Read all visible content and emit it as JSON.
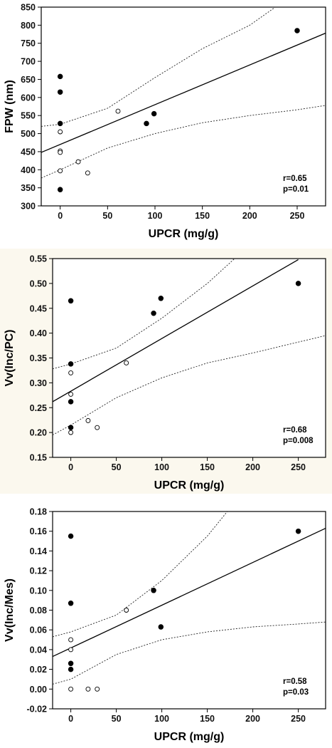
{
  "charts": [
    {
      "type": "scatter",
      "ylabel": "FPW (nm)",
      "xlabel": "UPCR (mg/g)",
      "xlim": [
        -20,
        280
      ],
      "ylim": [
        300,
        850
      ],
      "xticks": [
        0,
        50,
        100,
        150,
        200,
        250
      ],
      "yticks": [
        300,
        350,
        400,
        450,
        500,
        550,
        600,
        650,
        700,
        750,
        800,
        850
      ],
      "tick_decimals": 0,
      "background": "#ffffff",
      "annotation_r": "r=0.65",
      "annotation_p": "p=0.01",
      "series": [
        {
          "marker": "filled",
          "points": [
            [
              0,
              658
            ],
            [
              0,
              615
            ],
            [
              0,
              528
            ],
            [
              0,
              345
            ],
            [
              91,
              528
            ],
            [
              99,
              555
            ],
            [
              250,
              785
            ]
          ]
        },
        {
          "marker": "open",
          "points": [
            [
              0,
              505
            ],
            [
              0,
              452
            ],
            [
              0,
              448
            ],
            [
              0,
              397
            ],
            [
              19,
              422
            ],
            [
              29,
              391
            ],
            [
              61,
              562
            ]
          ]
        }
      ],
      "regression": {
        "x": [
          -20,
          280
        ],
        "y": [
          448,
          778
        ]
      },
      "band_upper": {
        "x": [
          -20,
          0,
          50,
          100,
          150,
          200,
          227
        ],
        "y": [
          520,
          526,
          570,
          655,
          735,
          800,
          850
        ]
      },
      "band_lower": {
        "x": [
          -20,
          0,
          50,
          100,
          150,
          200,
          250,
          280
        ],
        "y": [
          377,
          400,
          460,
          500,
          530,
          550,
          566,
          578
        ]
      }
    },
    {
      "type": "scatter",
      "ylabel": "Vv(Inc/PC)",
      "xlabel": "UPCR (mg/g)",
      "xlim": [
        -20,
        280
      ],
      "ylim": [
        0.15,
        0.55
      ],
      "xticks": [
        0,
        50,
        100,
        150,
        200,
        250
      ],
      "yticks": [
        0.15,
        0.2,
        0.25,
        0.3,
        0.35,
        0.4,
        0.45,
        0.5,
        0.55
      ],
      "tick_decimals": 2,
      "background": "#fbf8ee",
      "annotation_r": "r=0.68",
      "annotation_p": "p=0.008",
      "series": [
        {
          "marker": "filled",
          "points": [
            [
              0,
              0.465
            ],
            [
              0,
              0.338
            ],
            [
              0,
              0.262
            ],
            [
              0,
              0.21
            ],
            [
              91,
              0.44
            ],
            [
              99,
              0.47
            ],
            [
              250,
              0.5
            ]
          ]
        },
        {
          "marker": "open",
          "points": [
            [
              0,
              0.32
            ],
            [
              0,
              0.277
            ],
            [
              0,
              0.2
            ],
            [
              19,
              0.224
            ],
            [
              29,
              0.21
            ],
            [
              61,
              0.34
            ]
          ]
        }
      ],
      "regression": {
        "x": [
          -20,
          250
        ],
        "y": [
          0.262,
          0.548
        ]
      },
      "band_upper": {
        "x": [
          -20,
          0,
          50,
          100,
          150,
          180
        ],
        "y": [
          0.328,
          0.338,
          0.37,
          0.43,
          0.5,
          0.55
        ]
      },
      "band_lower": {
        "x": [
          -20,
          0,
          50,
          100,
          150,
          200,
          250,
          280
        ],
        "y": [
          0.195,
          0.215,
          0.27,
          0.31,
          0.34,
          0.36,
          0.382,
          0.395
        ]
      }
    },
    {
      "type": "scatter",
      "ylabel": "Vv(Inc/Mes)",
      "xlabel": "UPCR (mg/g)",
      "xlim": [
        -20,
        280
      ],
      "ylim": [
        -0.02,
        0.18
      ],
      "xticks": [
        0,
        50,
        100,
        150,
        200,
        250
      ],
      "yticks": [
        -0.02,
        0.0,
        0.02,
        0.04,
        0.06,
        0.08,
        0.1,
        0.12,
        0.14,
        0.16,
        0.18
      ],
      "tick_decimals": 2,
      "background": "#ffffff",
      "annotation_r": "r=0.58",
      "annotation_p": "p=0.03",
      "series": [
        {
          "marker": "filled",
          "points": [
            [
              0,
              0.155
            ],
            [
              0,
              0.087
            ],
            [
              0,
              0.026
            ],
            [
              0,
              0.02
            ],
            [
              91,
              0.1
            ],
            [
              99,
              0.063
            ],
            [
              250,
              0.16
            ]
          ]
        },
        {
          "marker": "open",
          "points": [
            [
              0,
              0.05
            ],
            [
              0,
              0.04
            ],
            [
              0,
              0.0
            ],
            [
              19,
              0.0
            ],
            [
              29,
              0.0
            ],
            [
              61,
              0.08
            ]
          ]
        }
      ],
      "regression": {
        "x": [
          -20,
          280
        ],
        "y": [
          0.033,
          0.163
        ]
      },
      "band_upper": {
        "x": [
          -20,
          0,
          50,
          100,
          150,
          172
        ],
        "y": [
          0.053,
          0.058,
          0.075,
          0.11,
          0.155,
          0.18
        ]
      },
      "band_lower": {
        "x": [
          -20,
          0,
          50,
          100,
          150,
          200,
          250,
          280
        ],
        "y": [
          0.005,
          0.01,
          0.035,
          0.05,
          0.058,
          0.063,
          0.066,
          0.068
        ]
      }
    }
  ]
}
